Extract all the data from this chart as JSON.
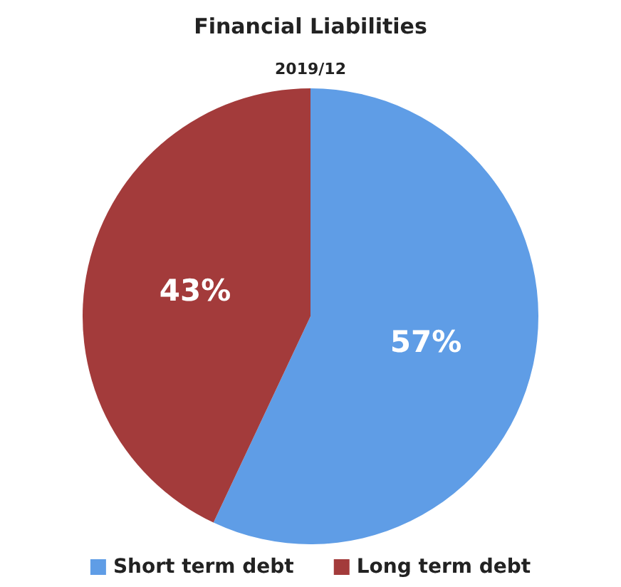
{
  "chart_data": {
    "type": "pie",
    "title": "Financial Liabilities",
    "subtitle": "2019/12",
    "categories": [
      "Short term debt",
      "Long term debt"
    ],
    "values": [
      57,
      43
    ],
    "value_labels": [
      "57%",
      "43%"
    ],
    "colors": [
      "#5f9de6",
      "#a33b3b"
    ],
    "legend": "bottom"
  }
}
